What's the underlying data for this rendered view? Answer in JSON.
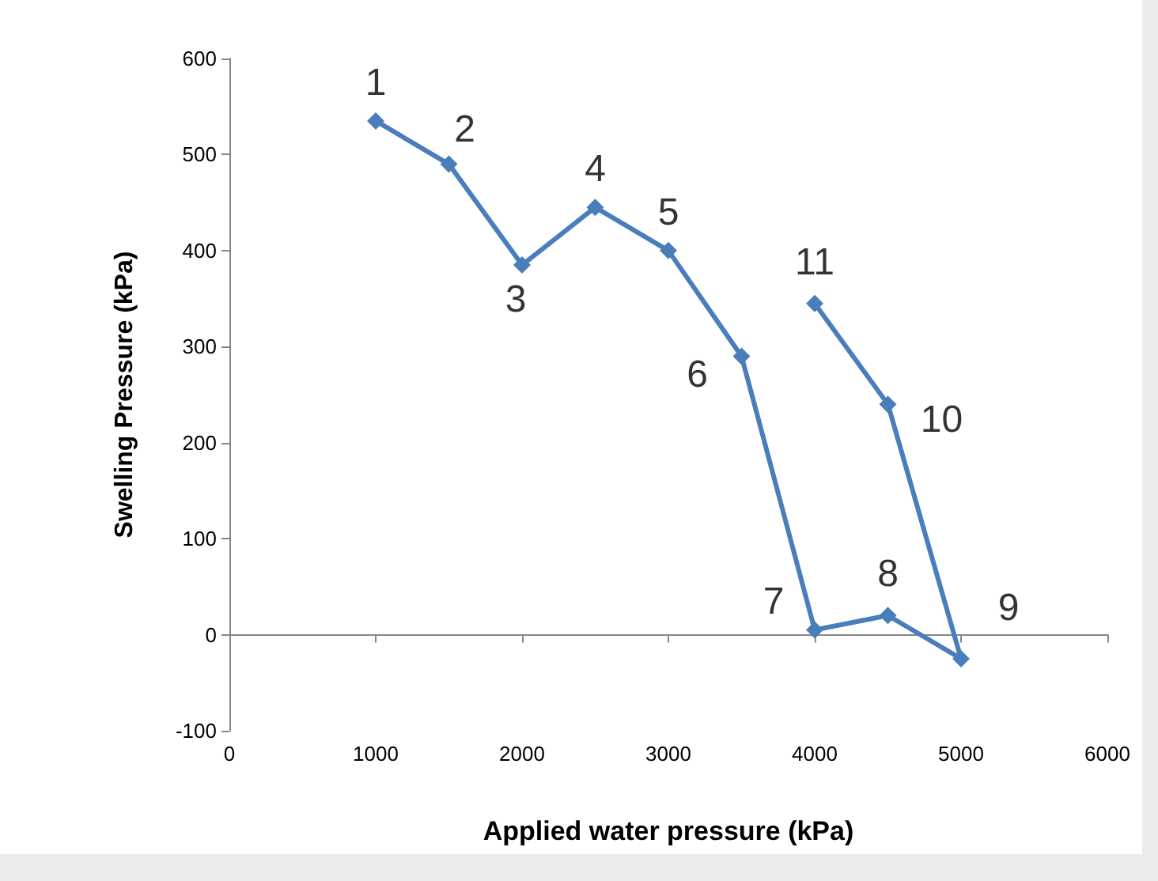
{
  "chart_data": {
    "type": "line",
    "xlabel": "Applied water pressure (kPa)",
    "ylabel": "Swelling Pressure (kPa)",
    "series": [
      {
        "color": "#4a7ebb",
        "x": [
          1000,
          1500,
          2000,
          2500,
          3000,
          3500,
          4000,
          4500,
          5000,
          4500,
          4000
        ],
        "values": [
          535,
          490,
          385,
          445,
          400,
          290,
          5,
          20,
          -25,
          240,
          345
        ]
      }
    ],
    "xlim": [
      0,
      6000
    ],
    "xticks": [
      0,
      1000,
      2000,
      3000,
      4000,
      5000,
      6000
    ],
    "ylim": [
      -100,
      600
    ],
    "yticks": [
      -100,
      0,
      100,
      200,
      300,
      400,
      500,
      600
    ],
    "marker": "diamond",
    "line_style": "solid",
    "annotations": [
      {
        "text": "1",
        "x": 1000,
        "y": 535
      },
      {
        "text": "2",
        "x": 1500,
        "y": 490
      },
      {
        "text": "3",
        "x": 2000,
        "y": 385
      },
      {
        "text": "4",
        "x": 2500,
        "y": 445
      },
      {
        "text": "5",
        "x": 3000,
        "y": 400
      },
      {
        "text": "6",
        "x": 3500,
        "y": 290
      },
      {
        "text": "7",
        "x": 4000,
        "y": 5
      },
      {
        "text": "8",
        "x": 4500,
        "y": 20
      },
      {
        "text": "9",
        "x": 5000,
        "y": -25
      },
      {
        "text": "10",
        "x": 4500,
        "y": 240
      },
      {
        "text": "11",
        "x": 4000,
        "y": 345
      }
    ]
  }
}
